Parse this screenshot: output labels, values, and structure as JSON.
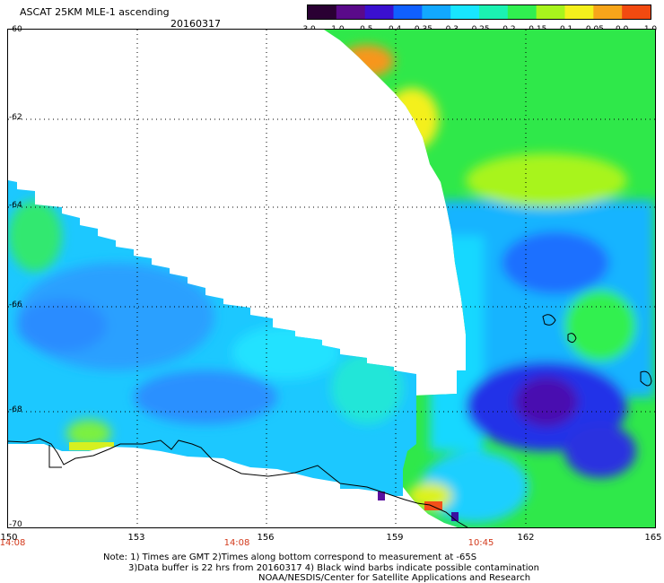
{
  "header": {
    "title": "ASCAT 25KM MLE-1 ascending",
    "date": "20160317"
  },
  "colorbar": {
    "ticks": [
      "-3.0",
      "-1.0",
      "-0.5",
      "-0.4",
      "-0.35",
      "-0.3",
      "-0.25",
      "-0.2",
      "-0.15",
      "-0.1",
      "-0.05",
      "0.0",
      "1.0"
    ],
    "colors": [
      "#2a0033",
      "#5a0a8a",
      "#3a10d0",
      "#1060ff",
      "#12a8ff",
      "#18e6ff",
      "#1bf2b2",
      "#30f050",
      "#a8f41c",
      "#f4f01c",
      "#f7a51a",
      "#f24a10"
    ]
  },
  "axes": {
    "lat_labels": [
      "-60",
      "-62",
      "-64",
      "-66",
      "-68",
      "-70"
    ],
    "lon_labels": [
      "150",
      "153",
      "156",
      "159",
      "162",
      "165"
    ],
    "time_labels": [
      "14:08",
      "14:08",
      "10:45"
    ]
  },
  "notes": {
    "line1": "Note: 1) Times are GMT 2)Times along bottom correspond to measurement at -65S",
    "line2": "3)Data buffer is 22 hrs from 20160317 4) Black wind barbs indicate possible contamination",
    "line3": "NOAA/NESDIS/Center for Satellite Applications and Research"
  }
}
